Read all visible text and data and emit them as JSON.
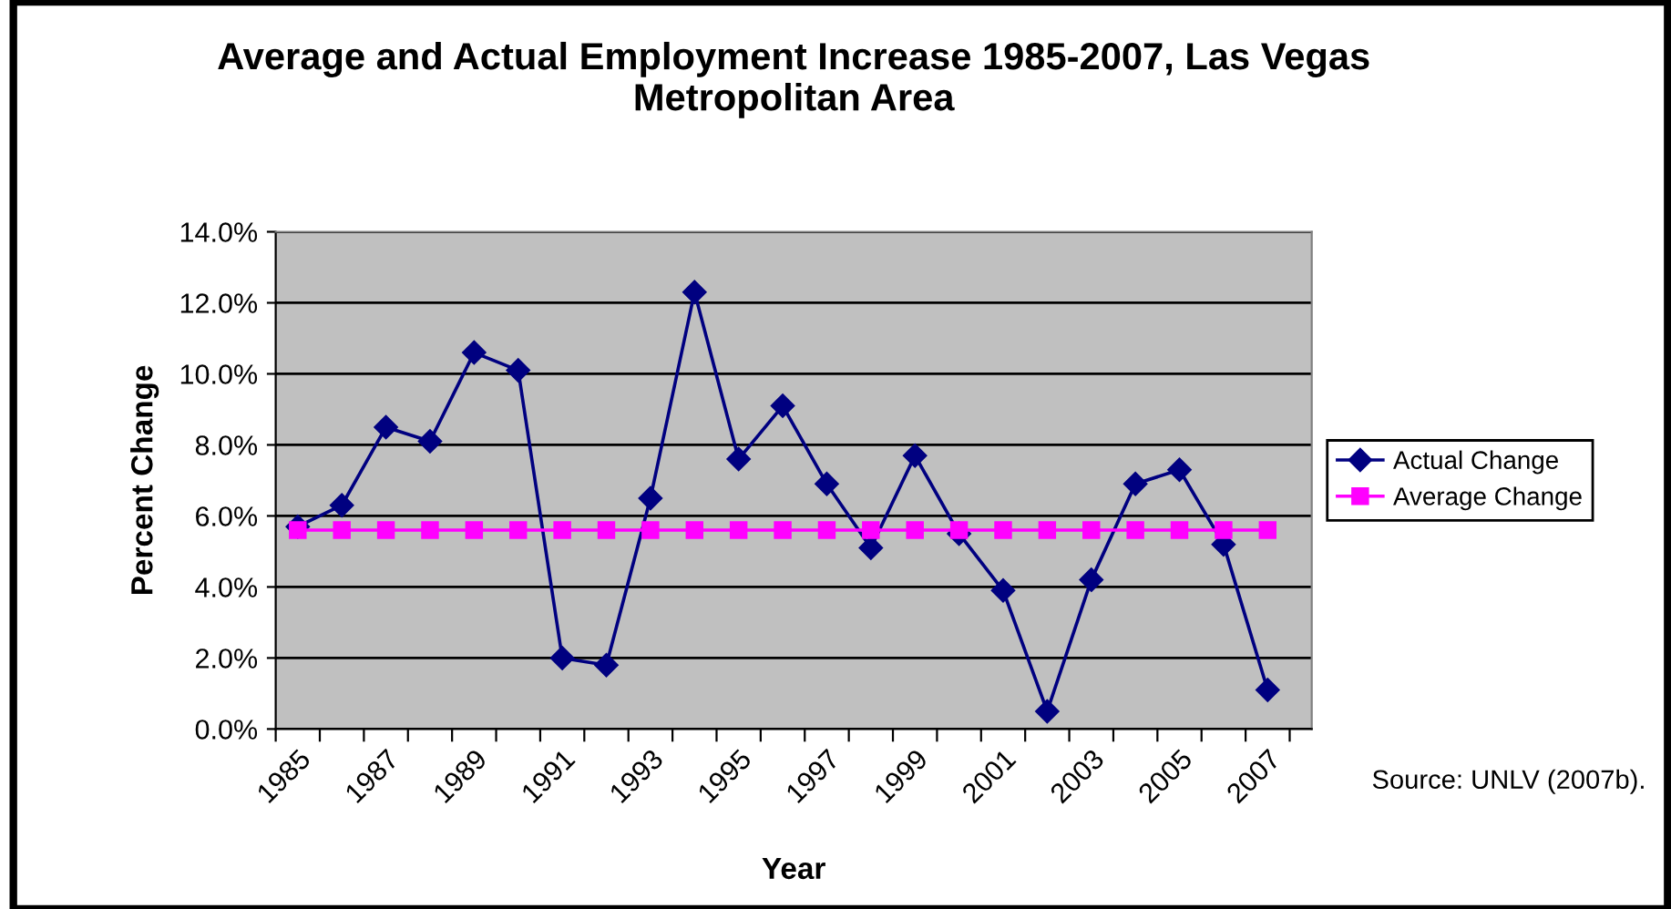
{
  "chart_data": {
    "type": "line",
    "title": "Average and Actual Employment Increase 1985-2007, Las Vegas\nMetropolitan Area",
    "xlabel": "Year",
    "ylabel": "Percent Change",
    "categories": [
      "1985",
      null,
      "1987",
      null,
      "1989",
      null,
      "1991",
      null,
      "1993",
      null,
      "1995",
      null,
      "1997",
      null,
      "1999",
      null,
      "2001",
      null,
      "2003",
      null,
      "2005",
      null,
      "2007"
    ],
    "series": [
      {
        "name": "Actual Change",
        "color": "#000080",
        "marker": "diamond",
        "values": [
          5.7,
          6.3,
          8.5,
          8.1,
          10.6,
          10.1,
          2.0,
          1.8,
          6.5,
          12.3,
          7.6,
          9.1,
          6.9,
          5.1,
          7.7,
          5.5,
          3.9,
          0.5,
          4.2,
          6.9,
          7.3,
          5.2,
          1.1
        ]
      },
      {
        "name": "Average Change",
        "color": "#ff00ff",
        "marker": "square",
        "values": [
          5.6,
          5.6,
          5.6,
          5.6,
          5.6,
          5.6,
          5.6,
          5.6,
          5.6,
          5.6,
          5.6,
          5.6,
          5.6,
          5.6,
          5.6,
          5.6,
          5.6,
          5.6,
          5.6,
          5.6,
          5.6,
          5.6,
          5.6
        ]
      }
    ],
    "ylim": [
      0,
      14
    ],
    "yticks": [
      {
        "value": 0,
        "label": "0.0%"
      },
      {
        "value": 2,
        "label": "2.0%"
      },
      {
        "value": 4,
        "label": "4.0%"
      },
      {
        "value": 6,
        "label": "6.0%"
      },
      {
        "value": 8,
        "label": "8.0%"
      },
      {
        "value": 10,
        "label": "10.0%"
      },
      {
        "value": 12,
        "label": "12.0%"
      },
      {
        "value": 14,
        "label": "14.0%"
      }
    ],
    "grid": "y",
    "legend": "right",
    "line_style": "solid",
    "annotations": [
      "Source: UNLV (2007b)."
    ]
  }
}
